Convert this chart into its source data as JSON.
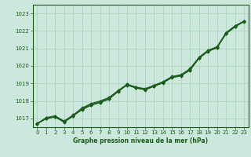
{
  "title": "Graphe pression niveau de la mer (hPa)",
  "background_color": "#cce8dc",
  "grid_color": "#aacfbe",
  "line_color": "#1a5c1a",
  "marker": "D",
  "markersize": 1.8,
  "linewidth": 0.8,
  "xlim": [
    -0.5,
    23.5
  ],
  "ylim": [
    1016.5,
    1023.5
  ],
  "yticks": [
    1017,
    1018,
    1019,
    1020,
    1021,
    1022,
    1023
  ],
  "xticks": [
    0,
    1,
    2,
    3,
    4,
    5,
    6,
    7,
    8,
    9,
    10,
    11,
    12,
    13,
    14,
    15,
    16,
    17,
    18,
    19,
    20,
    21,
    22,
    23
  ],
  "series": [
    [
      1016.7,
      1017.0,
      1017.1,
      1016.8,
      1017.15,
      1017.5,
      1017.75,
      1017.9,
      1018.1,
      1018.55,
      1018.95,
      1018.75,
      1018.65,
      1018.85,
      1019.05,
      1019.35,
      1019.45,
      1019.75,
      1020.45,
      1020.85,
      1021.05,
      1021.85,
      1022.25,
      1022.55
    ],
    [
      1016.7,
      1017.05,
      1017.15,
      1016.85,
      1017.2,
      1017.6,
      1017.85,
      1018.0,
      1018.2,
      1018.6,
      1018.95,
      1018.8,
      1018.7,
      1018.9,
      1019.1,
      1019.4,
      1019.5,
      1019.85,
      1020.5,
      1020.9,
      1021.1,
      1021.9,
      1022.3,
      1022.55
    ],
    [
      1016.72,
      1017.02,
      1017.12,
      1016.82,
      1017.17,
      1017.55,
      1017.8,
      1017.95,
      1018.15,
      1018.57,
      1018.92,
      1018.77,
      1018.67,
      1018.87,
      1019.07,
      1019.37,
      1019.47,
      1019.8,
      1020.47,
      1020.87,
      1021.07,
      1021.87,
      1022.27,
      1022.57
    ],
    [
      1016.68,
      1016.98,
      1017.08,
      1016.78,
      1017.13,
      1017.52,
      1017.77,
      1017.92,
      1018.12,
      1018.53,
      1018.9,
      1018.73,
      1018.63,
      1018.83,
      1019.03,
      1019.33,
      1019.43,
      1019.77,
      1020.43,
      1020.83,
      1021.03,
      1021.83,
      1022.23,
      1022.53
    ]
  ]
}
